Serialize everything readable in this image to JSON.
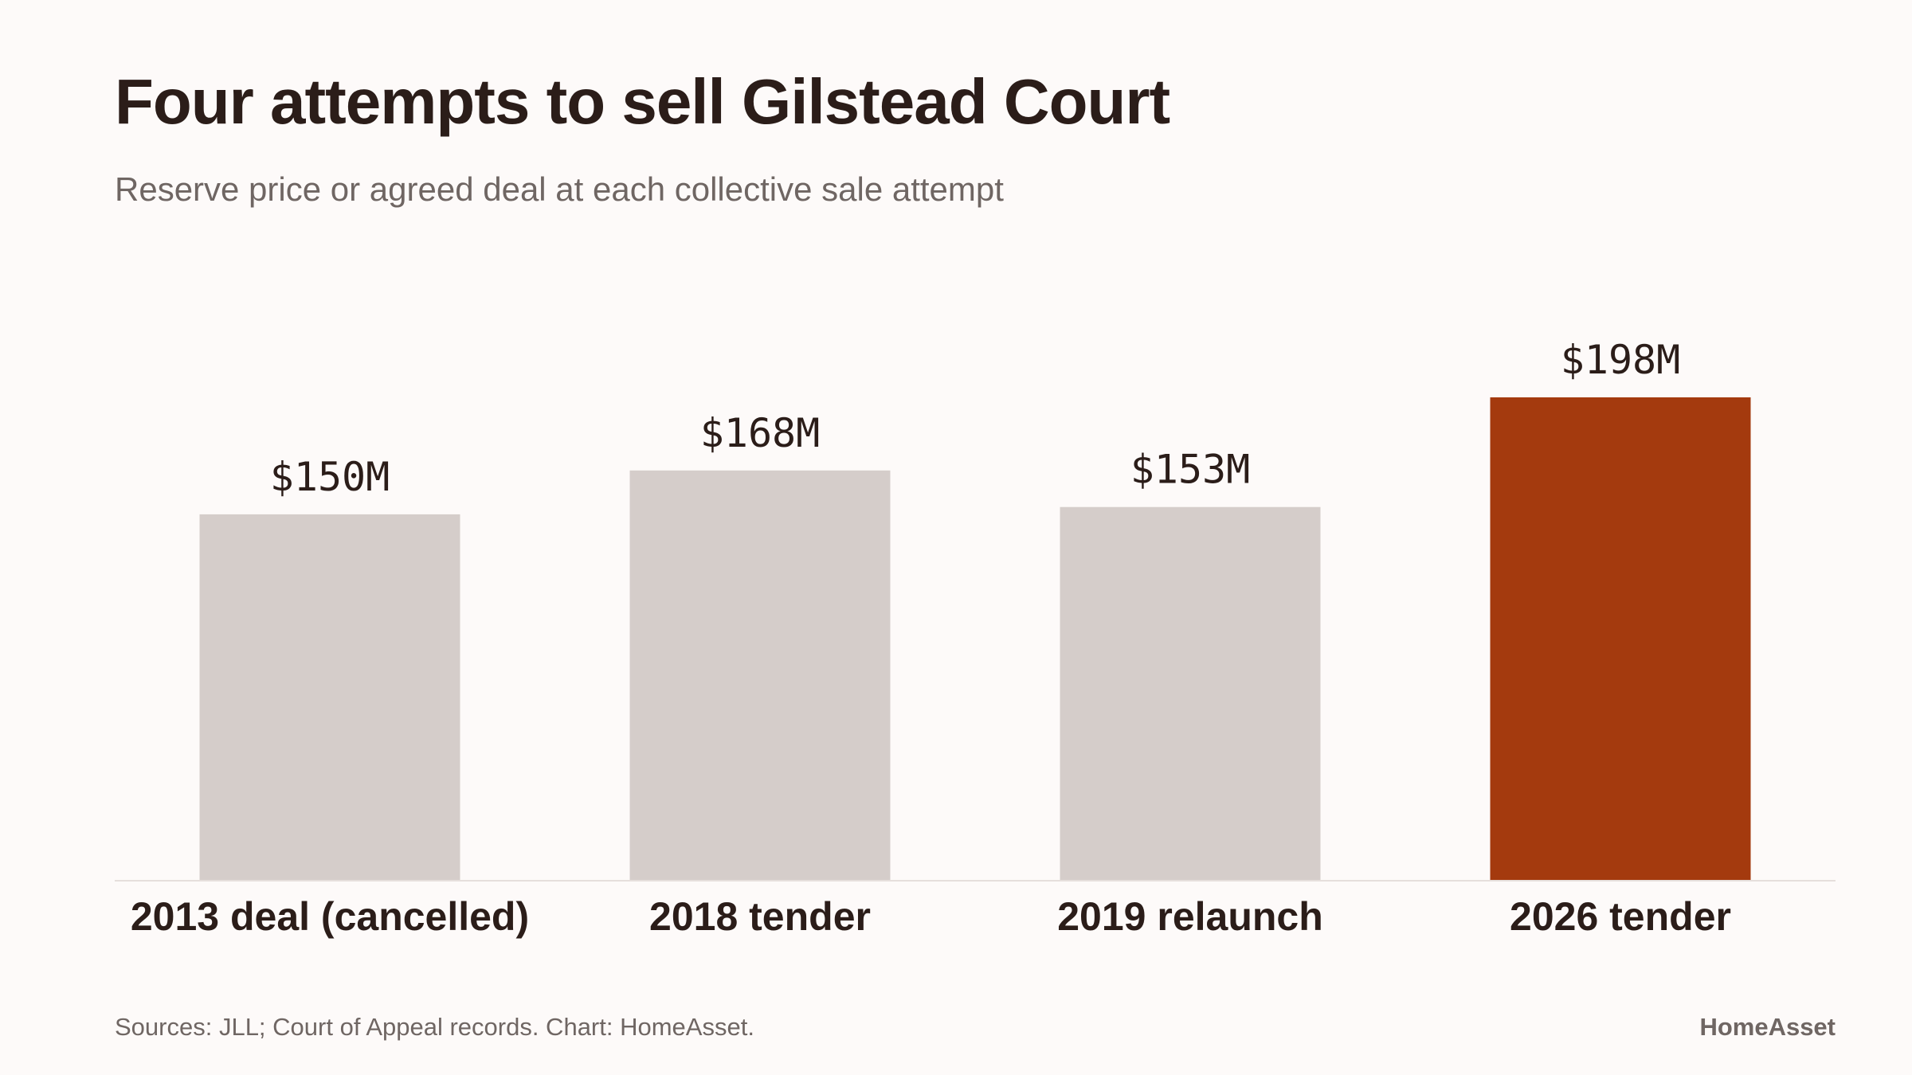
{
  "header": {
    "title": "Four attempts to sell Gilstead Court",
    "subtitle": "Reserve price or agreed deal at each collective sale attempt"
  },
  "footer": {
    "source": "Sources: JLL; Court of Appeal records. Chart: HomeAsset.",
    "brand": "HomeAsset"
  },
  "colors": {
    "background": "#fdfaf9",
    "muted_bar": "#d5cdca",
    "highlight_bar": "#a43a0e",
    "text": "#2b1d19",
    "muted_text": "#6f6663"
  },
  "chart_data": {
    "type": "bar",
    "title": "Four attempts to sell Gilstead Court",
    "subtitle": "Reserve price or agreed deal at each collective sale attempt",
    "categories": [
      "2013 deal (cancelled)",
      "2018 tender",
      "2019 relaunch",
      "2026 tender"
    ],
    "values": [
      150,
      168,
      153,
      198
    ],
    "value_labels": [
      "$150M",
      "$168M",
      "$153M",
      "$198M"
    ],
    "highlight_index": 3,
    "unit": "$M",
    "xlabel": "",
    "ylabel": "",
    "ylim": [
      0,
      198
    ],
    "grid": false,
    "legend": "none"
  }
}
